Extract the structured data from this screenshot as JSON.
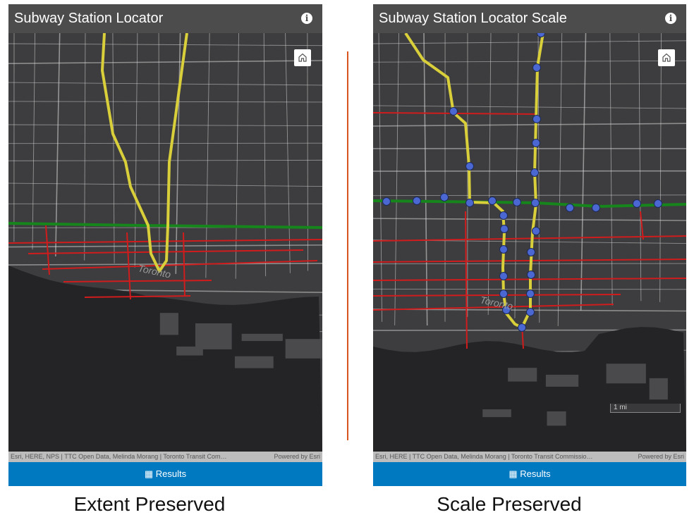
{
  "panels": [
    {
      "title": "Subway Station Locator",
      "map_label": "Toronto",
      "attribution": "Esri, HERE, NPS | TTC Open Data, Melinda Morang | Toronto Transit Com…",
      "powered_by": "Powered by Esri",
      "button": "Results",
      "caption": "Extent Preserved"
    },
    {
      "title": "Subway Station Locator Scale",
      "map_label": "Toronto",
      "scale_label": "1 mi",
      "attribution": "Esri, HERE | TTC Open Data, Melinda Morang | Toronto Transit Commissio…",
      "powered_by": "Powered by Esri",
      "button": "Results",
      "caption": "Scale Preserved"
    }
  ]
}
